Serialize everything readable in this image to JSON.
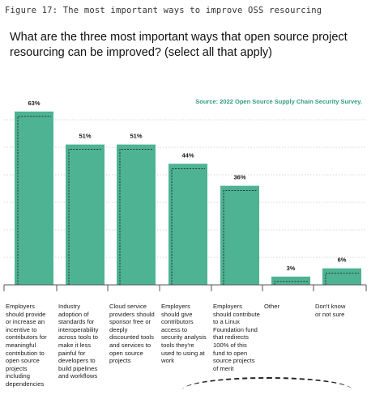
{
  "figure_label": "Figure 17: The most important ways to improve OSS resourcing",
  "question": "What are the three most important ways that open source project resourcing can be improved? (select all that apply)",
  "source": "Source: 2022 Open Source Supply Chain Security Survey.",
  "colors": {
    "bar": "#4db393",
    "dashed_outline": "#222222",
    "gridline": "#c8c8c8",
    "source_text": "#2f9e80"
  },
  "chart_data": {
    "type": "bar",
    "categories": [
      "Employers should provide or increase an incentive to contributors for meaningful contribution to open source projects including dependencies",
      "Industry adoption of standards for interoperability across tools to make it less painful for developers to build pipelines and workflows",
      "Cloud service providers should sponsor free or deeply discounted tools and services to open source projects",
      "Employers should give contributors access to security analysis tools they're used to using at work",
      "Employers should contribute to a Linux Foundation fund that redirects 100% of this fund to open source projects of merit",
      "Other",
      "Don't know or not sure"
    ],
    "values": [
      63,
      51,
      51,
      44,
      36,
      3,
      6
    ],
    "value_labels": [
      "63%",
      "51%",
      "51%",
      "44%",
      "36%",
      "3%",
      "6%"
    ],
    "ylim": [
      0,
      70
    ],
    "grid": true,
    "title": "",
    "xlabel": "",
    "ylabel": ""
  }
}
